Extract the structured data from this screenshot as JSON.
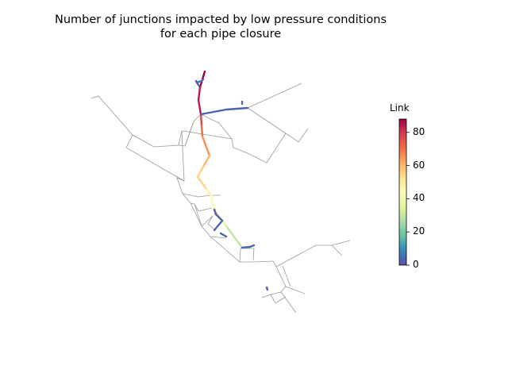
{
  "title": {
    "line1": "Number of junctions impacted by low pressure conditions",
    "line2": "for each pipe closure"
  },
  "colorbar": {
    "label": "Link",
    "min": 0,
    "max": 88,
    "ticks": [
      {
        "value": 0,
        "label": "0"
      },
      {
        "value": 20,
        "label": "20"
      },
      {
        "value": 40,
        "label": "40"
      },
      {
        "value": 60,
        "label": "60"
      },
      {
        "value": 80,
        "label": "80"
      }
    ],
    "colormap": "Spectral_r"
  },
  "network": {
    "base_color": "#9a9a9a",
    "highlighted_pipe_values": [
      88,
      88,
      5,
      5,
      84,
      84,
      78,
      71,
      66,
      60,
      55,
      55,
      47,
      43,
      40,
      35,
      30,
      3,
      3,
      3,
      3,
      3,
      3,
      4,
      4,
      2,
      2,
      2,
      5
    ]
  }
}
